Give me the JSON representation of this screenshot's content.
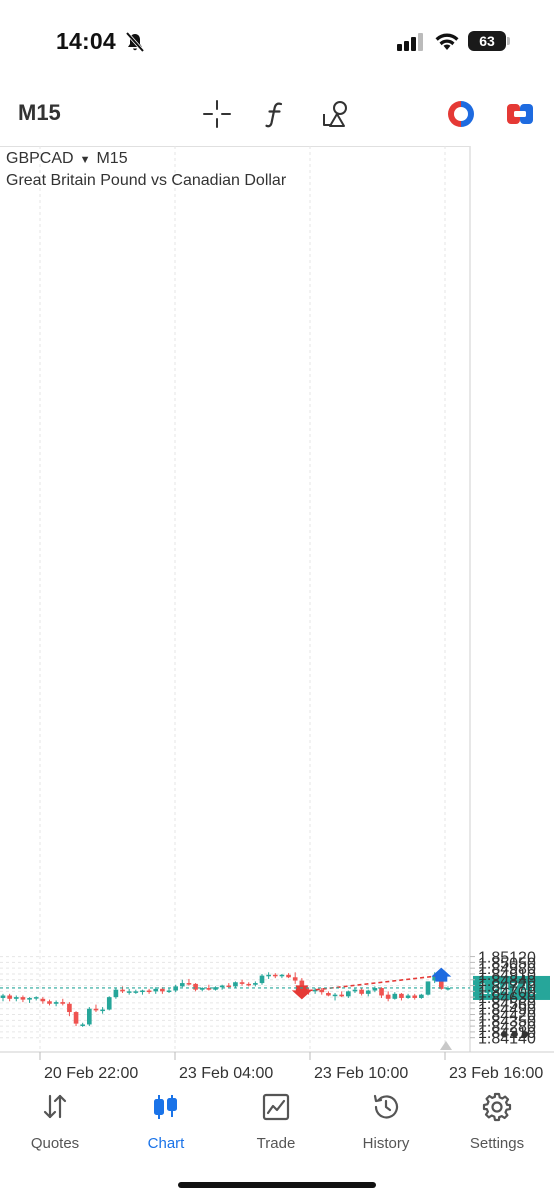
{
  "status_bar": {
    "time": "14:04",
    "battery": "63",
    "icons": [
      "bell-slash-icon",
      "cellular-signal-icon",
      "wifi-icon",
      "battery-icon"
    ]
  },
  "toolbar": {
    "timeframe": "M15",
    "tools": [
      "crosshair-icon",
      "indicators-f-icon",
      "objects-icon",
      "buy-sell-icon",
      "one-click-trading-icon"
    ]
  },
  "chart_header": {
    "symbol": "GBPCAD",
    "dropdown_glyph": "▼",
    "timeframe": "M15",
    "description": "Great Britain Pound vs Canadian Dollar",
    "more_glyph": "•••"
  },
  "colors": {
    "bull": "#26a69a",
    "bear": "#ef5350",
    "accent": "#1a73e8",
    "price_line": "#26a69a",
    "trade_line": "#e53935",
    "grid": "#e6e6e6"
  },
  "chart_data": {
    "type": "candlestick",
    "symbol": "GBPCAD",
    "timeframe": "M15",
    "ylim": [
      1.8407,
      1.8519
    ],
    "y_ticks": [
      "1.85120",
      "1.85050",
      "1.84980",
      "1.84910",
      "1.84840",
      "1.84770",
      "1.84700",
      "1.84630",
      "1.84560",
      "1.84490",
      "1.84420",
      "1.84350",
      "1.84280",
      "1.84210",
      "1.84140"
    ],
    "x_ticks": [
      "20 Feb 22:00",
      "23 Feb 04:00",
      "23 Feb 10:00",
      "23 Feb 16:00"
    ],
    "current_price": 1.84741,
    "current_price_label": "1.84741",
    "grid": true,
    "candles": [
      [
        1.8462,
        1.8467,
        1.8458,
        1.8465
      ],
      [
        1.8465,
        1.8467,
        1.8458,
        1.8461
      ],
      [
        1.8461,
        1.8465,
        1.8458,
        1.8463
      ],
      [
        1.8463,
        1.8465,
        1.8457,
        1.846
      ],
      [
        1.846,
        1.8463,
        1.8456,
        1.8462
      ],
      [
        1.8462,
        1.8464,
        1.8459,
        1.8463
      ],
      [
        1.8461,
        1.8463,
        1.8455,
        1.8458
      ],
      [
        1.8458,
        1.846,
        1.8453,
        1.8455
      ],
      [
        1.8455,
        1.8459,
        1.8452,
        1.8457
      ],
      [
        1.8457,
        1.8461,
        1.8453,
        1.8455
      ],
      [
        1.8455,
        1.8457,
        1.844,
        1.8445
      ],
      [
        1.8445,
        1.8446,
        1.8428,
        1.8431
      ],
      [
        1.8429,
        1.8432,
        1.8427,
        1.843
      ],
      [
        1.843,
        1.8451,
        1.8428,
        1.8449
      ],
      [
        1.8449,
        1.8454,
        1.8445,
        1.8447
      ],
      [
        1.8447,
        1.8451,
        1.8443,
        1.8448
      ],
      [
        1.8448,
        1.8464,
        1.8447,
        1.8463
      ],
      [
        1.8463,
        1.8474,
        1.8461,
        1.8472
      ],
      [
        1.8472,
        1.8476,
        1.8468,
        1.847
      ],
      [
        1.847,
        1.8473,
        1.8466,
        1.847
      ],
      [
        1.847,
        1.8472,
        1.8467,
        1.847
      ],
      [
        1.847,
        1.8472,
        1.8466,
        1.8471
      ],
      [
        1.8471,
        1.8473,
        1.8467,
        1.847
      ],
      [
        1.847,
        1.8475,
        1.8467,
        1.8473
      ],
      [
        1.8473,
        1.8475,
        1.8467,
        1.847
      ],
      [
        1.847,
        1.8474,
        1.8468,
        1.8471
      ],
      [
        1.8471,
        1.8478,
        1.8469,
        1.8476
      ],
      [
        1.8476,
        1.8484,
        1.8475,
        1.848
      ],
      [
        1.848,
        1.8485,
        1.8477,
        1.8479
      ],
      [
        1.8479,
        1.848,
        1.847,
        1.8472
      ],
      [
        1.8472,
        1.8475,
        1.847,
        1.8474
      ],
      [
        1.8474,
        1.8478,
        1.8471,
        1.8472
      ],
      [
        1.8472,
        1.8476,
        1.8471,
        1.8475
      ],
      [
        1.8475,
        1.8478,
        1.8472,
        1.8477
      ],
      [
        1.8477,
        1.848,
        1.8474,
        1.8476
      ],
      [
        1.8476,
        1.8482,
        1.8474,
        1.8481
      ],
      [
        1.8481,
        1.8484,
        1.8477,
        1.8479
      ],
      [
        1.8479,
        1.8481,
        1.8476,
        1.8478
      ],
      [
        1.8478,
        1.8482,
        1.8476,
        1.848
      ],
      [
        1.848,
        1.8491,
        1.8478,
        1.8489
      ],
      [
        1.8489,
        1.8493,
        1.8485,
        1.849
      ],
      [
        1.849,
        1.8492,
        1.8486,
        1.8489
      ],
      [
        1.8489,
        1.8491,
        1.8486,
        1.849
      ],
      [
        1.849,
        1.8492,
        1.8486,
        1.8487
      ],
      [
        1.8487,
        1.8493,
        1.8479,
        1.8483
      ],
      [
        1.8483,
        1.8486,
        1.847,
        1.8472
      ],
      [
        1.8472,
        1.8474,
        1.8466,
        1.847
      ],
      [
        1.847,
        1.8474,
        1.8467,
        1.8472
      ],
      [
        1.8472,
        1.8474,
        1.8466,
        1.8469
      ],
      [
        1.8468,
        1.847,
        1.8464,
        1.8465
      ],
      [
        1.8465,
        1.8468,
        1.8459,
        1.8466
      ],
      [
        1.8466,
        1.847,
        1.8463,
        1.8464
      ],
      [
        1.8464,
        1.8471,
        1.8462,
        1.847
      ],
      [
        1.847,
        1.8474,
        1.8468,
        1.8472
      ],
      [
        1.8472,
        1.8474,
        1.8465,
        1.8467
      ],
      [
        1.8467,
        1.8472,
        1.8464,
        1.8471
      ],
      [
        1.8471,
        1.8476,
        1.8469,
        1.8474
      ],
      [
        1.8474,
        1.8475,
        1.8462,
        1.8465
      ],
      [
        1.8466,
        1.847,
        1.8458,
        1.8461
      ],
      [
        1.8461,
        1.8469,
        1.846,
        1.8467
      ],
      [
        1.8467,
        1.8468,
        1.8459,
        1.8462
      ],
      [
        1.8462,
        1.8467,
        1.8461,
        1.8465
      ],
      [
        1.8465,
        1.8467,
        1.846,
        1.8462
      ],
      [
        1.8462,
        1.8467,
        1.8461,
        1.8466
      ],
      [
        1.8466,
        1.8482,
        1.8465,
        1.8482
      ],
      [
        1.8483,
        1.8493,
        1.848,
        1.8489
      ],
      [
        1.8489,
        1.849,
        1.8472,
        1.8473
      ],
      [
        1.8473,
        1.8476,
        1.8471,
        1.8474
      ]
    ],
    "trade_markers": [
      {
        "type": "sell",
        "candle": 45,
        "price": 1.847
      },
      {
        "type": "buy",
        "candle": 66,
        "price": 1.8489
      }
    ]
  },
  "bottom_nav": {
    "items": [
      {
        "label": "Quotes",
        "icon": "quotes-arrows-icon",
        "active": false
      },
      {
        "label": "Chart",
        "icon": "candlestick-chart-icon",
        "active": true
      },
      {
        "label": "Trade",
        "icon": "trade-chart-icon",
        "active": false
      },
      {
        "label": "History",
        "icon": "history-icon",
        "active": false
      },
      {
        "label": "Settings",
        "icon": "settings-gear-icon",
        "active": false
      }
    ]
  }
}
